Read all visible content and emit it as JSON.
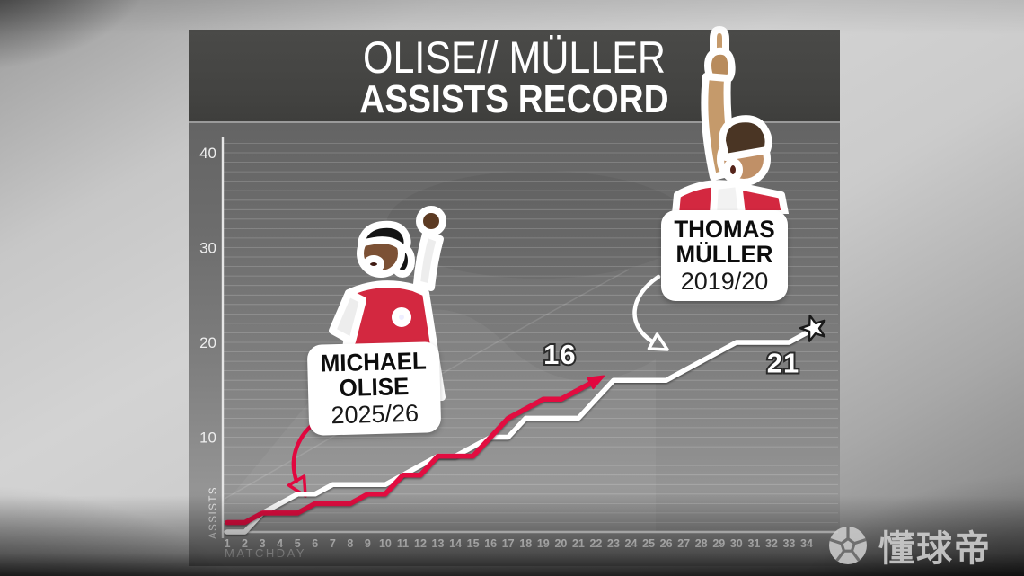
{
  "title": {
    "line1": "OLISE// MÜLLER",
    "line2": "ASSISTS RECORD"
  },
  "axes": {
    "y_label": "ASSISTS",
    "x_label": "MATCHDAY"
  },
  "annotations": {
    "olise": {
      "name_line1": "MICHAEL",
      "name_line2": "OLISE",
      "season": "2025/26"
    },
    "mueller": {
      "name_line1": "THOMAS",
      "name_line2": "MÜLLER",
      "season": "2019/20"
    }
  },
  "watermark": {
    "text": "懂球帝",
    "icon": "football-logo-icon"
  },
  "colors": {
    "olise_line": "#e2073f",
    "mueller_line": "#ffffff",
    "header_bg": "#434341",
    "jersey_red": "#d32840",
    "label_text": "#0d0d0d"
  },
  "chart_data": {
    "type": "line",
    "title": "OLISE// MÜLLER ASSISTS RECORD",
    "xlabel": "MATCHDAY",
    "ylabel": "ASSISTS",
    "x": [
      1,
      2,
      3,
      4,
      5,
      6,
      7,
      8,
      9,
      10,
      11,
      12,
      13,
      14,
      15,
      16,
      17,
      18,
      19,
      20,
      21,
      22,
      23,
      24,
      25,
      26,
      27,
      28,
      29,
      30,
      31,
      32,
      33,
      34
    ],
    "xlim": [
      1,
      34
    ],
    "ylim": [
      0,
      42
    ],
    "y_ticks": [
      10,
      20,
      30,
      40
    ],
    "grid": "horizontal, every 1 assist",
    "legend_position": "inline-stickers",
    "series": [
      {
        "name": "Thomas Müller 2019/20",
        "color": "#ffffff",
        "end_marker": "star",
        "end_value_label": "21",
        "values": [
          0,
          0,
          2,
          3,
          4,
          4,
          5,
          5,
          5,
          5,
          6,
          7,
          8,
          8,
          9,
          10,
          10,
          12,
          12,
          12,
          12,
          14,
          16,
          16,
          16,
          16,
          17,
          18,
          19,
          20,
          20,
          20,
          20,
          21
        ]
      },
      {
        "name": "Michael Olise 2025/26",
        "color": "#e2073f",
        "end_marker": "arrow",
        "end_value_label": "16",
        "values": [
          1,
          1,
          2,
          2,
          2,
          3,
          3,
          3,
          4,
          4,
          6,
          6,
          8,
          8,
          8,
          10,
          12,
          13,
          14,
          14,
          15,
          16
        ]
      }
    ]
  }
}
